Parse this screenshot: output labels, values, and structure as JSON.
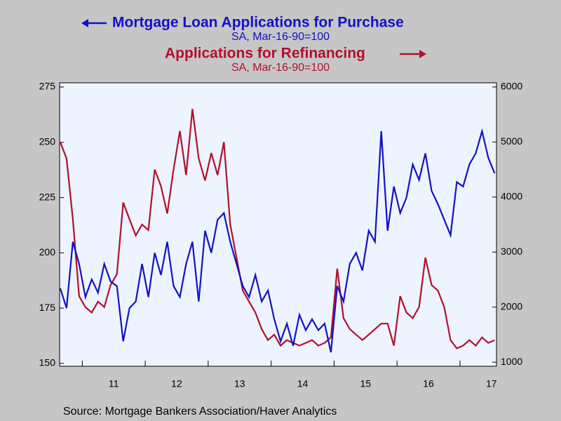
{
  "chart_data": {
    "type": "line",
    "series": [
      {
        "name": "Mortgage Loan Applications for Purchase",
        "subtitle": "SA, Mar-16-90=100",
        "color": "#1212c4",
        "axis": "y",
        "values": [
          184,
          175,
          205,
          195,
          180,
          188,
          182,
          195,
          187,
          185,
          160,
          175,
          178,
          195,
          180,
          200,
          190,
          205,
          185,
          180,
          195,
          205,
          178,
          210,
          200,
          215,
          218,
          205,
          195,
          185,
          180,
          190,
          178,
          183,
          170,
          160,
          168,
          158,
          172,
          165,
          170,
          165,
          168,
          155,
          185,
          178,
          195,
          200,
          192,
          210,
          205,
          255,
          210,
          230,
          218,
          225,
          240,
          233,
          245,
          228,
          222,
          215,
          208,
          232,
          230,
          240,
          245,
          255,
          243,
          236
        ]
      },
      {
        "name": "Applications for Refinancing",
        "subtitle": "SA, Mar-16-90=100",
        "color": "#b0102e",
        "axis": "y2",
        "values": [
          5000,
          4700,
          3600,
          2200,
          2000,
          1900,
          2100,
          2000,
          2400,
          2600,
          3900,
          3600,
          3300,
          3500,
          3400,
          4500,
          4200,
          3700,
          4500,
          5200,
          4400,
          5600,
          4700,
          4300,
          4800,
          4400,
          5000,
          3500,
          2900,
          2300,
          2100,
          1900,
          1600,
          1400,
          1500,
          1300,
          1400,
          1350,
          1300,
          1350,
          1400,
          1300,
          1350,
          1450,
          2700,
          1800,
          1600,
          1500,
          1400,
          1500,
          1600,
          1700,
          1700,
          1300,
          2200,
          1900,
          1800,
          2000,
          2900,
          2400,
          2300,
          2000,
          1400,
          1250,
          1300,
          1400,
          1300,
          1450,
          1350,
          1400
        ]
      }
    ],
    "x": [
      2010.65,
      2010.75,
      2010.85,
      2010.95,
      2011.05,
      2011.15,
      2011.25,
      2011.35,
      2011.45,
      2011.55,
      2011.65,
      2011.75,
      2011.85,
      2011.95,
      2012.05,
      2012.15,
      2012.25,
      2012.35,
      2012.45,
      2012.55,
      2012.65,
      2012.75,
      2012.85,
      2012.95,
      2013.05,
      2013.15,
      2013.25,
      2013.35,
      2013.45,
      2013.55,
      2013.65,
      2013.75,
      2013.85,
      2013.95,
      2014.05,
      2014.15,
      2014.25,
      2014.35,
      2014.45,
      2014.55,
      2014.65,
      2014.75,
      2014.85,
      2014.95,
      2015.05,
      2015.15,
      2015.25,
      2015.35,
      2015.45,
      2015.55,
      2015.65,
      2015.75,
      2015.85,
      2015.95,
      2016.05,
      2016.15,
      2016.25,
      2016.35,
      2016.45,
      2016.55,
      2016.65,
      2016.75,
      2016.85,
      2016.95,
      2017.05,
      2017.15,
      2017.25,
      2017.35,
      2017.45,
      2017.55
    ],
    "xlim": [
      2010.64,
      2017.58
    ],
    "xticks": [
      {
        "value": 2011,
        "label": "11"
      },
      {
        "value": 2012,
        "label": "12"
      },
      {
        "value": 2013,
        "label": "13"
      },
      {
        "value": 2014,
        "label": "14"
      },
      {
        "value": 2015,
        "label": "15"
      },
      {
        "value": 2016,
        "label": "16"
      },
      {
        "value": 2017,
        "label": "17"
      }
    ],
    "ylim": [
      148.7,
      276.9
    ],
    "yticks": [
      150,
      175,
      200,
      225,
      250,
      275
    ],
    "y2lim": [
      925,
      6076
    ],
    "y2ticks": [
      1000,
      2000,
      3000,
      4000,
      5000,
      6000
    ],
    "source": "Source:  Mortgage Bankers Association/Haver Analytics"
  }
}
